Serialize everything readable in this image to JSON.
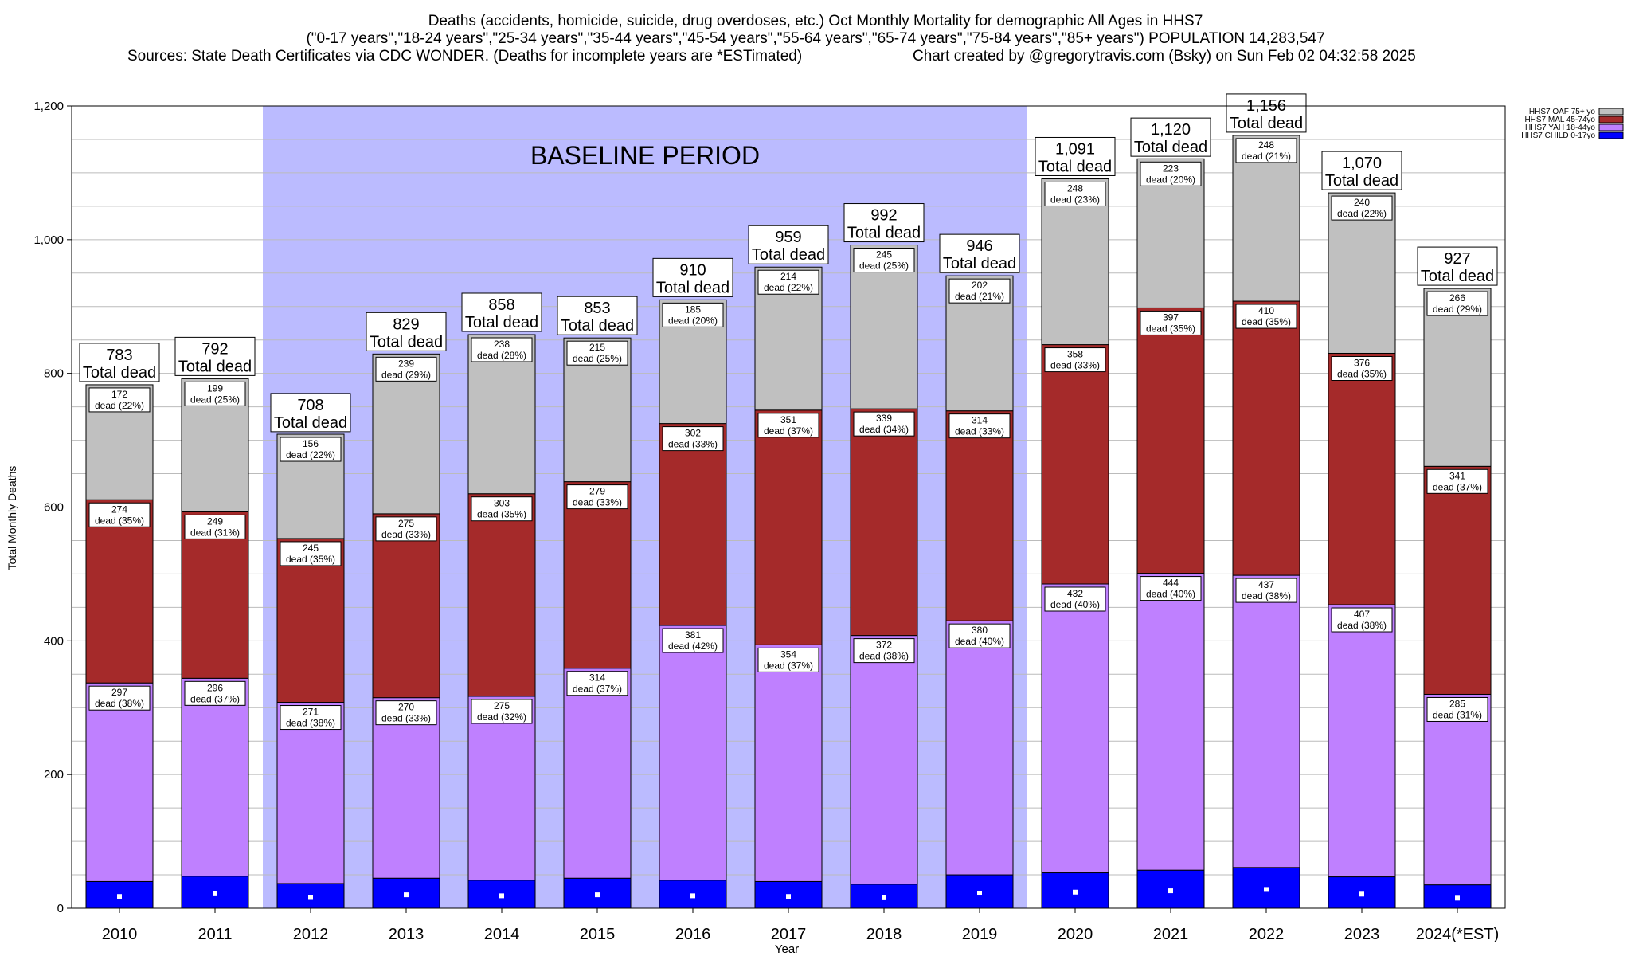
{
  "chart_data": {
    "type": "bar",
    "stacked": true,
    "title_lines": [
      "Deaths (accidents, homicide, suicide, drug overdoses, etc.) Oct Monthly Mortality for demographic All Ages in HHS7",
      "(\"0-17 years\",\"18-24 years\",\"25-34 years\",\"35-44 years\",\"45-54 years\",\"55-64 years\",\"65-74 years\",\"75-84 years\",\"85+ years\") POPULATION 14,283,547"
    ],
    "sources": "Sources: State Death Certificates via CDC WONDER. (Deaths for incomplete years are *ESTimated)",
    "credit": "Chart created by @gregorytravis.com (Bsky) on Sun Feb 02 04:32:58 2025",
    "xlabel": "Year",
    "ylabel": "Total Monthly Deaths",
    "ylim": [
      0,
      1200
    ],
    "yticks": [
      0,
      200,
      400,
      600,
      800,
      1000,
      1200
    ],
    "ytick_labels": [
      "0",
      "200",
      "400",
      "600",
      "800",
      "1,000",
      "1,200"
    ],
    "grid": true,
    "legend_position": "top-right",
    "baseline_label": "BASELINE PERIOD",
    "baseline_range": [
      "2012",
      "2019"
    ],
    "total_suffix": "Total dead",
    "categories": [
      "2010",
      "2011",
      "2012",
      "2013",
      "2014",
      "2015",
      "2016",
      "2017",
      "2018",
      "2019",
      "2020",
      "2021",
      "2022",
      "2023",
      "2024(*EST)"
    ],
    "totals": [
      783,
      792,
      708,
      829,
      858,
      853,
      910,
      959,
      992,
      946,
      1091,
      1120,
      1156,
      1070,
      927
    ],
    "total_labels": [
      "783",
      "792",
      "708",
      "829",
      "858",
      "853",
      "910",
      "959",
      "992",
      "946",
      "1,091",
      "1,120",
      "1,156",
      "1,070",
      "927"
    ],
    "series": [
      {
        "name": "HHS7 CHILD 0-17yo",
        "color": "#0000ff",
        "values": [
          40,
          48,
          37,
          45,
          42,
          45,
          42,
          40,
          36,
          50,
          53,
          57,
          61,
          47,
          35
        ],
        "labels": []
      },
      {
        "name": "HHS7 YAH 18-44yo",
        "color": "#bf80ff",
        "values": [
          297,
          296,
          271,
          270,
          275,
          314,
          381,
          354,
          372,
          380,
          432,
          444,
          437,
          407,
          285
        ],
        "labels": [
          "dead (38%)",
          "dead (37%)",
          "dead (38%)",
          "dead (33%)",
          "dead (32%)",
          "dead (37%)",
          "dead (42%)",
          "dead (37%)",
          "dead (38%)",
          "dead (40%)",
          "dead (40%)",
          "dead (40%)",
          "dead (38%)",
          "dead (38%)",
          "dead (31%)"
        ]
      },
      {
        "name": "HHS7 MAL 45-74yo",
        "color": "#a52a2a",
        "values": [
          274,
          249,
          245,
          275,
          303,
          279,
          302,
          351,
          339,
          314,
          358,
          397,
          410,
          376,
          341
        ],
        "labels": [
          "dead (35%)",
          "dead (31%)",
          "dead (35%)",
          "dead (33%)",
          "dead (35%)",
          "dead (33%)",
          "dead (33%)",
          "dead (37%)",
          "dead (34%)",
          "dead (33%)",
          "dead (33%)",
          "dead (35%)",
          "dead (35%)",
          "dead (35%)",
          "dead (37%)"
        ]
      },
      {
        "name": "HHS7 OAF 75+ yo",
        "color": "#c0c0c0",
        "values": [
          172,
          199,
          156,
          239,
          238,
          215,
          185,
          214,
          245,
          202,
          248,
          223,
          248,
          240,
          266
        ],
        "labels": [
          "dead (22%)",
          "dead (25%)",
          "dead (22%)",
          "dead (29%)",
          "dead (28%)",
          "dead (25%)",
          "dead (20%)",
          "dead (22%)",
          "dead (25%)",
          "dead (21%)",
          "dead (23%)",
          "dead (20%)",
          "dead (21%)",
          "dead (22%)",
          "dead (29%)"
        ]
      }
    ],
    "legend_order": [
      "HHS7 OAF 75+ yo",
      "HHS7 MAL 45-74yo",
      "HHS7 YAH 18-44yo",
      "HHS7 CHILD 0-17yo"
    ],
    "colors": {
      "baseline_band": "#bbbbff",
      "grid": "#bbbbbb"
    }
  }
}
